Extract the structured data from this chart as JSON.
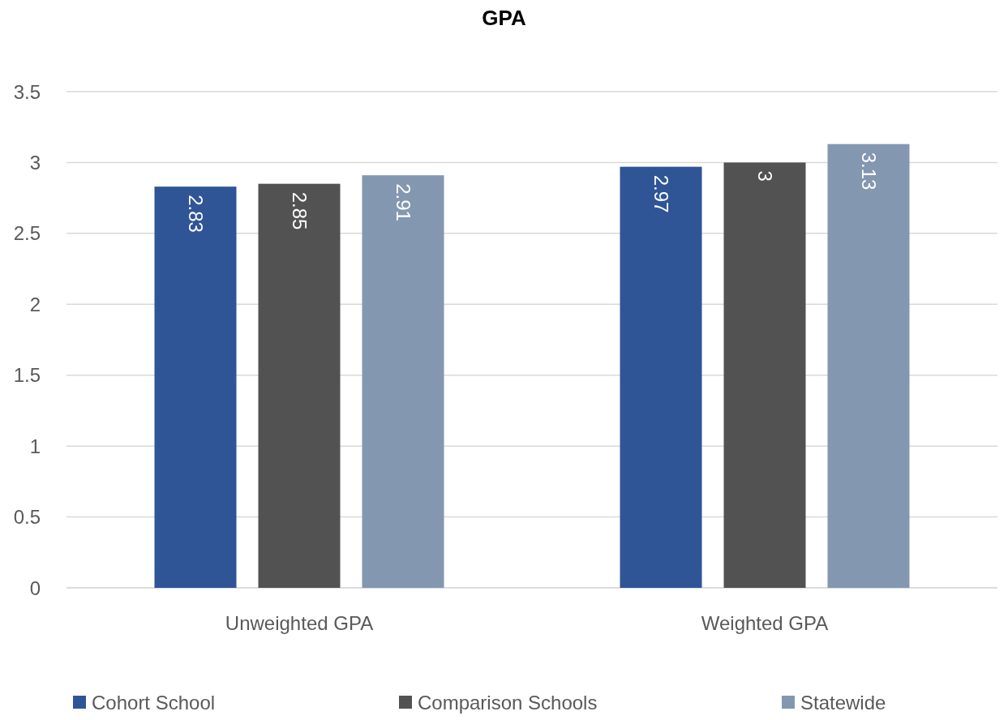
{
  "chart_data": {
    "type": "bar",
    "title": "GPA",
    "categories": [
      "Unweighted GPA",
      "Weighted GPA"
    ],
    "series": [
      {
        "name": "Cohort School",
        "color": "#2f5597",
        "values": [
          2.83,
          2.97
        ]
      },
      {
        "name": "Comparison Schools",
        "color": "#525252",
        "values": [
          2.85,
          3
        ]
      },
      {
        "name": "Statewide",
        "color": "#8497b0",
        "values": [
          2.91,
          3.13
        ]
      }
    ],
    "ylim": [
      0,
      3.5
    ],
    "yticks": [
      0,
      0.5,
      1,
      1.5,
      2,
      2.5,
      3,
      3.5
    ],
    "grid": "y",
    "legend": "bottom",
    "data_labels": true
  }
}
